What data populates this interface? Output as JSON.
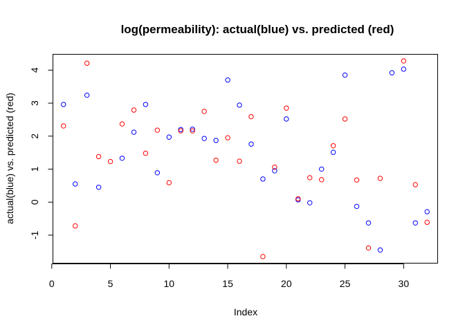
{
  "chart_data": {
    "type": "scatter",
    "title": "log(permeability): actual(blue) vs. predicted (red)",
    "xlabel": "Index",
    "ylabel": "actual(blue) vs. predicted (red)",
    "xlim": [
      0.1,
      32.9
    ],
    "ylim": [
      -1.85,
      4.48
    ],
    "x_ticks": [
      0,
      5,
      10,
      15,
      20,
      25,
      30
    ],
    "y_ticks": [
      -1,
      0,
      1,
      2,
      3,
      4
    ],
    "grid": false,
    "legend": "none",
    "x": [
      1,
      2,
      3,
      4,
      5,
      6,
      7,
      8,
      9,
      10,
      11,
      12,
      13,
      14,
      15,
      16,
      17,
      18,
      19,
      20,
      21,
      22,
      23,
      24,
      25,
      26,
      27,
      28,
      29,
      30,
      31,
      32
    ],
    "series": [
      {
        "color": "#0000ff",
        "values": [
          2.96,
          0.55,
          3.24,
          0.45,
          null,
          1.33,
          2.12,
          2.96,
          0.89,
          1.97,
          2.2,
          2.21,
          1.93,
          1.87,
          3.7,
          2.94,
          1.76,
          0.7,
          0.95,
          2.52,
          0.07,
          -0.02,
          1.0,
          1.51,
          3.85,
          -0.13,
          -0.63,
          -1.45,
          3.92,
          4.03,
          -0.63,
          -0.29
        ]
      },
      {
        "color": "#ff0000",
        "values": [
          2.31,
          -0.72,
          4.21,
          1.38,
          1.23,
          2.37,
          2.79,
          1.48,
          2.18,
          0.59,
          2.16,
          2.16,
          2.75,
          1.27,
          1.95,
          1.24,
          2.59,
          -1.65,
          1.06,
          2.85,
          0.1,
          0.74,
          0.68,
          1.71,
          2.52,
          0.67,
          -1.39,
          0.72,
          null,
          4.28,
          0.53,
          -0.61
        ]
      }
    ]
  }
}
